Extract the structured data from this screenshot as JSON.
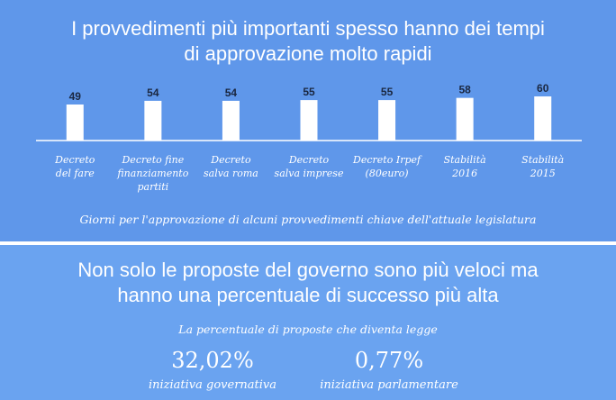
{
  "colors": {
    "background_top": "#5f97ea",
    "background_bottom": "#6aa3f0",
    "bar": "#ffffff",
    "value_label": "#1a2740",
    "axis": "#ffffff"
  },
  "header": {
    "title_line1": "I provvedimenti più importanti spesso hanno dei tempi",
    "title_line2": "di approvazione molto rapidi"
  },
  "chart_data": {
    "type": "bar",
    "categories": [
      [
        "Decreto",
        "del fare"
      ],
      [
        "Decreto fine",
        "finanziamento",
        "partiti"
      ],
      [
        "Decreto",
        "salva roma"
      ],
      [
        "Decreto",
        "salva imprese"
      ],
      [
        "Decreto Irpef",
        "(80euro)"
      ],
      [
        "Stabilità",
        "2016"
      ],
      [
        "Stabilità",
        "2015"
      ]
    ],
    "values": [
      49,
      54,
      54,
      55,
      55,
      58,
      60
    ],
    "caption": "Giorni per l'approvazione di alcuni provvedimenti chiave dell'attuale legislatura",
    "grid": false,
    "legend": "none"
  },
  "section2": {
    "title_line1": "Non solo le proposte del governo sono più veloci ma",
    "title_line2": "hanno una percentuale di successo più alta",
    "caption": "La percentuale di proposte che diventa legge",
    "stats": [
      {
        "value": "32,02%",
        "label": "iniziativa governativa"
      },
      {
        "value": "0,77%",
        "label": "iniziativa parlamentare"
      }
    ]
  }
}
